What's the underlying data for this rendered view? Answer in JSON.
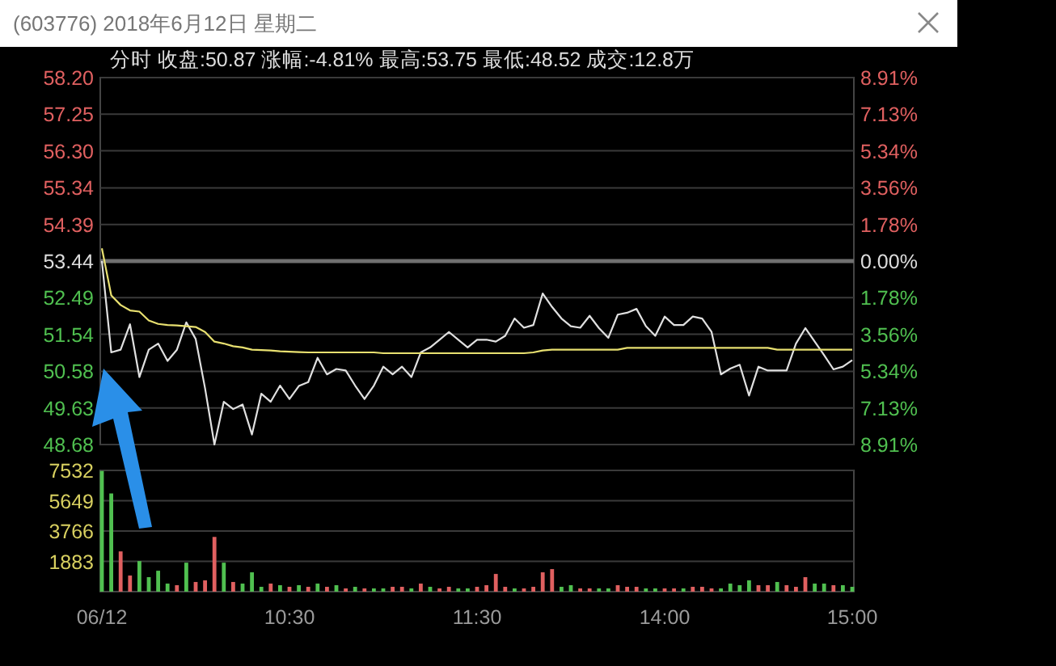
{
  "chart_data": [
    {
      "type": "line",
      "title": "(603776) 2018年6月12日 星期二",
      "subtitle": "分时  收盘:50.87  涨幅:-4.81%  最高:53.75  最低:48.52  成交:12.8万",
      "categories": [
        null,
        null,
        null,
        null,
        null,
        null,
        null,
        null,
        null,
        null,
        null,
        null,
        null,
        null,
        null,
        null,
        null,
        null,
        null,
        null,
        null,
        null,
        null,
        null,
        null,
        null,
        null,
        null,
        null,
        null,
        null,
        null,
        null,
        null,
        null,
        null,
        null,
        null,
        null,
        null,
        null,
        null,
        null,
        null,
        null,
        null,
        null,
        null,
        null,
        null,
        null,
        null,
        null,
        null,
        null,
        null,
        null,
        null,
        null,
        null,
        null,
        null,
        null,
        null,
        null,
        null,
        null,
        null,
        null,
        null,
        null,
        null,
        null,
        null,
        null,
        null,
        null,
        null,
        null,
        null,
        null
      ],
      "series": [
        {
          "color": "#e0e0e0",
          "values": [
            53.44,
            51.07,
            51.14,
            51.8,
            50.43,
            51.14,
            51.3,
            50.85,
            51.14,
            51.85,
            51.42,
            50.14,
            48.68,
            49.79,
            49.6,
            49.72,
            48.94,
            50.0,
            49.79,
            50.21,
            49.86,
            50.2,
            50.3,
            50.93,
            50.5,
            50.64,
            50.6,
            50.21,
            49.86,
            50.21,
            50.7,
            50.5,
            50.7,
            50.43,
            51.07,
            51.2,
            51.4,
            51.6,
            51.4,
            51.2,
            51.4,
            51.4,
            51.35,
            51.5,
            51.95,
            51.71,
            51.78,
            52.6,
            52.25,
            51.95,
            51.75,
            51.71,
            52.02,
            51.7,
            51.45,
            52.05,
            52.1,
            52.2,
            51.75,
            51.5,
            52.0,
            51.78,
            51.78,
            52.0,
            51.95,
            51.6,
            50.5,
            50.65,
            50.75,
            49.95,
            50.7,
            50.6,
            50.6,
            50.6,
            51.3,
            51.7,
            51.35,
            51.0,
            50.63,
            50.7,
            50.87
          ]
        },
        {
          "color": "#e8e070",
          "values": [
            53.77,
            52.55,
            52.3,
            52.16,
            52.13,
            51.9,
            51.81,
            51.78,
            51.77,
            51.75,
            51.73,
            51.6,
            51.35,
            51.3,
            51.23,
            51.2,
            51.14,
            51.13,
            51.12,
            51.1,
            51.09,
            51.08,
            51.07,
            51.07,
            51.07,
            51.07,
            51.07,
            51.07,
            51.07,
            51.07,
            51.05,
            51.05,
            51.05,
            51.05,
            51.05,
            51.05,
            51.05,
            51.05,
            51.05,
            51.05,
            51.05,
            51.05,
            51.05,
            51.05,
            51.05,
            51.05,
            51.07,
            51.12,
            51.14,
            51.14,
            51.14,
            51.14,
            51.14,
            51.14,
            51.14,
            51.14,
            51.19,
            51.19,
            51.19,
            51.19,
            51.19,
            51.19,
            51.19,
            51.19,
            51.19,
            51.19,
            51.19,
            51.19,
            51.19,
            51.19,
            51.19,
            51.19,
            51.14,
            51.14,
            51.14,
            51.14,
            51.14,
            51.14,
            51.14,
            51.14,
            51.14
          ]
        }
      ],
      "ylim": [
        48.68,
        58.2
      ],
      "yticks": [
        48.68,
        49.63,
        50.58,
        51.54,
        52.49,
        53.44,
        54.39,
        55.34,
        {
          "value": 56.3,
          "label": "56.30"
        },
        57.25,
        {
          "value": 58.2,
          "label": "58.20"
        }
      ],
      "y2lim": [
        -8.91,
        8.91
      ],
      "y2ticks": [
        {
          "value": -8.91,
          "label": "8.91%"
        },
        {
          "value": -7.13,
          "label": "7.13%"
        },
        {
          "value": -5.34,
          "label": "5.34%"
        },
        {
          "value": -3.56,
          "label": "3.56%"
        },
        {
          "value": -1.78,
          "label": "1.78%"
        },
        {
          "value": 0,
          "label": "0.00%"
        },
        {
          "value": 1.78,
          "label": "1.78%"
        },
        {
          "value": 3.56,
          "label": "3.56%"
        },
        {
          "value": 5.34,
          "label": "5.34%"
        },
        {
          "value": 7.13,
          "label": "7.13%"
        },
        {
          "value": 8.91,
          "label": "8.91%"
        }
      ],
      "ref_lines": [
        {
          "axis": "y",
          "value": 53.44,
          "color": "#707070"
        }
      ],
      "grid": "y"
    },
    {
      "type": "bar",
      "categories": [
        "06/12",
        null,
        null,
        null,
        null,
        null,
        null,
        null,
        null,
        null,
        null,
        null,
        null,
        null,
        null,
        null,
        null,
        null,
        null,
        null,
        "10:30",
        null,
        null,
        null,
        null,
        null,
        null,
        null,
        null,
        null,
        null,
        null,
        null,
        null,
        null,
        null,
        null,
        null,
        null,
        null,
        "11:30",
        null,
        null,
        null,
        null,
        null,
        null,
        null,
        null,
        null,
        null,
        null,
        null,
        null,
        null,
        null,
        null,
        null,
        null,
        null,
        "14:00",
        null,
        null,
        null,
        null,
        null,
        null,
        null,
        null,
        null,
        null,
        null,
        null,
        null,
        null,
        null,
        null,
        null,
        null,
        null,
        "15:00"
      ],
      "series": [
        {
          "values": [
            7500,
            6100,
            2500,
            1000,
            1900,
            900,
            1300,
            500,
            400,
            1800,
            600,
            700,
            3400,
            1800,
            600,
            500,
            1200,
            300,
            500,
            400,
            300,
            400,
            300,
            500,
            300,
            400,
            200,
            300,
            200,
            200,
            200,
            300,
            300,
            200,
            500,
            300,
            200,
            300,
            200,
            200,
            300,
            400,
            1100,
            300,
            200,
            200,
            300,
            1200,
            1400,
            300,
            400,
            200,
            200,
            200,
            200,
            400,
            300,
            300,
            200,
            200,
            200,
            200,
            200,
            300,
            300,
            200,
            200,
            500,
            400,
            700,
            400,
            400,
            600,
            400,
            300,
            900,
            500,
            500,
            400,
            400,
            300
          ],
          "colors": [
            "#50c050",
            "#50c050",
            "#e06060",
            "#e06060",
            "#50c050",
            "#50c050",
            "#50c050",
            "#50c050",
            "#e06060",
            "#50c050",
            "#e06060",
            "#e06060",
            "#e06060",
            "#50c050",
            "#e06060",
            "#50c050",
            "#50c050",
            "#50c050",
            "#e06060",
            "#50c050",
            "#e06060",
            "#50c050",
            "#e06060",
            "#50c050",
            "#e06060",
            "#50c050",
            "#e06060",
            "#50c050",
            "#e06060",
            "#50c050",
            "#50c050",
            "#e06060",
            "#e06060",
            "#50c050",
            "#e06060",
            "#50c050",
            "#e06060",
            "#e06060",
            "#50c050",
            "#50c050",
            "#e06060",
            "#e06060",
            "#e06060",
            "#e06060",
            "#50c050",
            "#e06060",
            "#e06060",
            "#e06060",
            "#e06060",
            "#50c050",
            "#50c050",
            "#e06060",
            "#e06060",
            "#50c050",
            "#50c050",
            "#e06060",
            "#e06060",
            "#e06060",
            "#50c050",
            "#50c050",
            "#e06060",
            "#e06060",
            "#50c050",
            "#e06060",
            "#e06060",
            "#e06060",
            "#50c050",
            "#50c050",
            "#50c050",
            "#50c050",
            "#e06060",
            "#e06060",
            "#50c050",
            "#e06060",
            "#e06060",
            "#e06060",
            "#50c050",
            "#50c050",
            "#e06060",
            "#50c050",
            "#50c050"
          ]
        }
      ],
      "ylim": [
        0,
        7532
      ],
      "yticks": [
        1883,
        3766,
        5649,
        7532
      ],
      "grid": "y"
    }
  ]
}
